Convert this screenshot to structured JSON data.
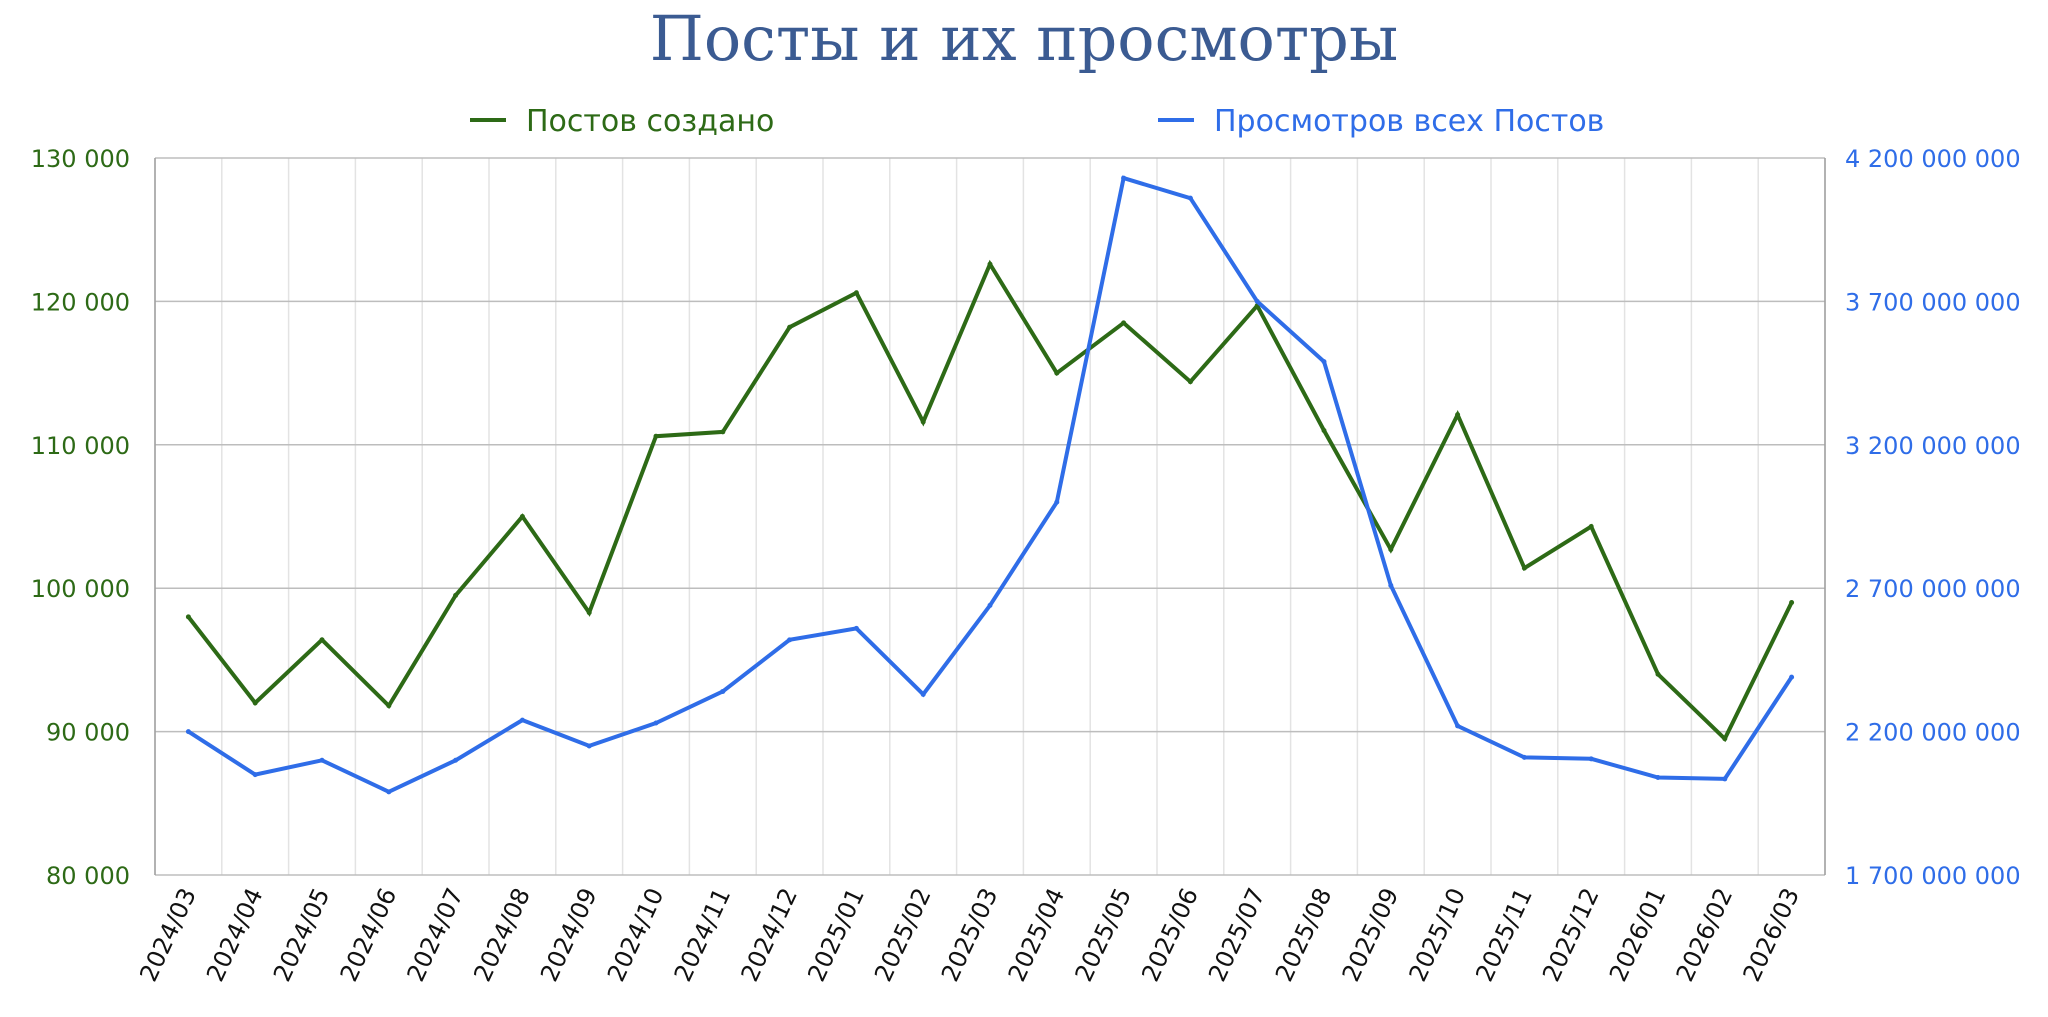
{
  "colors": {
    "title": "#3b5b92",
    "posts_series": "#2d6a16",
    "views_series": "#2f6de8",
    "grid_major": "#bdbdbd",
    "grid_minor": "#e3e3e3",
    "left_axis_text": "#2d6a16",
    "right_axis_text": "#2f6de8",
    "x_axis_text": "#111111"
  },
  "chart_data": {
    "type": "line",
    "title": "Посты и их просмотры",
    "legend_position": "top",
    "grid": true,
    "categories": [
      "2024/03",
      "2024/04",
      "2024/05",
      "2024/06",
      "2024/07",
      "2024/08",
      "2024/09",
      "2024/10",
      "2024/11",
      "2024/12",
      "2025/01",
      "2025/02",
      "2025/03",
      "2025/04",
      "2025/05",
      "2025/06",
      "2025/07",
      "2025/08",
      "2025/09",
      "2025/10",
      "2025/11",
      "2025/12",
      "2026/01",
      "2026/02",
      "2026/03"
    ],
    "y_left": {
      "ylim": [
        80000,
        130000
      ],
      "ticks": [
        80000,
        90000,
        100000,
        110000,
        120000,
        130000
      ],
      "tick_labels": [
        "80 000",
        "90 000",
        "100 000",
        "110 000",
        "120 000",
        "130 000"
      ]
    },
    "y_right": {
      "ylim": [
        1700000000,
        4200000000
      ],
      "ticks": [
        1700000000,
        2200000000,
        2700000000,
        3200000000,
        3700000000,
        4200000000
      ],
      "tick_labels": [
        "1 700 000 000",
        "2 200 000 000",
        "2 700 000 000",
        "3 200 000 000",
        "3 700 000 000",
        "4 200 000 000"
      ]
    },
    "series": [
      {
        "name": "Постов создано",
        "axis": "left",
        "values": [
          98000,
          92000,
          96400,
          91800,
          99500,
          105000,
          98300,
          110600,
          110900,
          118200,
          120600,
          111600,
          122600,
          115000,
          118500,
          114400,
          119700,
          111000,
          102700,
          112100,
          101400,
          104300,
          94000,
          89500,
          99000
        ]
      },
      {
        "name": "Просмотров всех Постов",
        "axis": "right",
        "values": [
          2200000000,
          2050000000,
          2100000000,
          1990000000,
          2100000000,
          2240000000,
          2150000000,
          2230000000,
          2340000000,
          2520000000,
          2560000000,
          2330000000,
          2640000000,
          3000000000,
          4130000000,
          4060000000,
          3700000000,
          3490000000,
          2710000000,
          2220000000,
          2110000000,
          2105000000,
          2040000000,
          2035000000,
          2390000000
        ]
      }
    ]
  }
}
